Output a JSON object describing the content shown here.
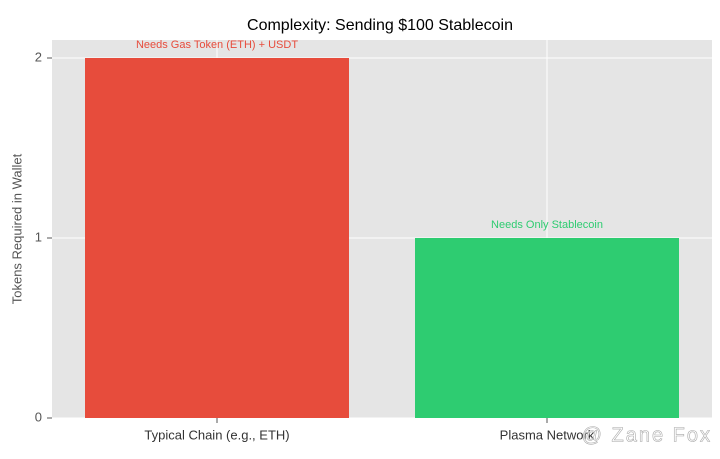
{
  "chart_data": {
    "type": "bar",
    "title": "Complexity: Sending $100 Stablecoin",
    "ylabel": "Tokens Required in Wallet",
    "categories": [
      "Typical Chain (e.g., ETH)",
      "Plasma Network"
    ],
    "values": [
      2,
      1
    ],
    "colors": [
      "#e74c3c",
      "#2ecc71"
    ],
    "annotations": [
      "Needs Gas Token (ETH) + USDT",
      "Needs Only Stablecoin"
    ],
    "ylim": [
      0,
      2.1
    ],
    "yticks": [
      0,
      1,
      2
    ],
    "grid": true,
    "watermark": "@ Zane Fox"
  }
}
